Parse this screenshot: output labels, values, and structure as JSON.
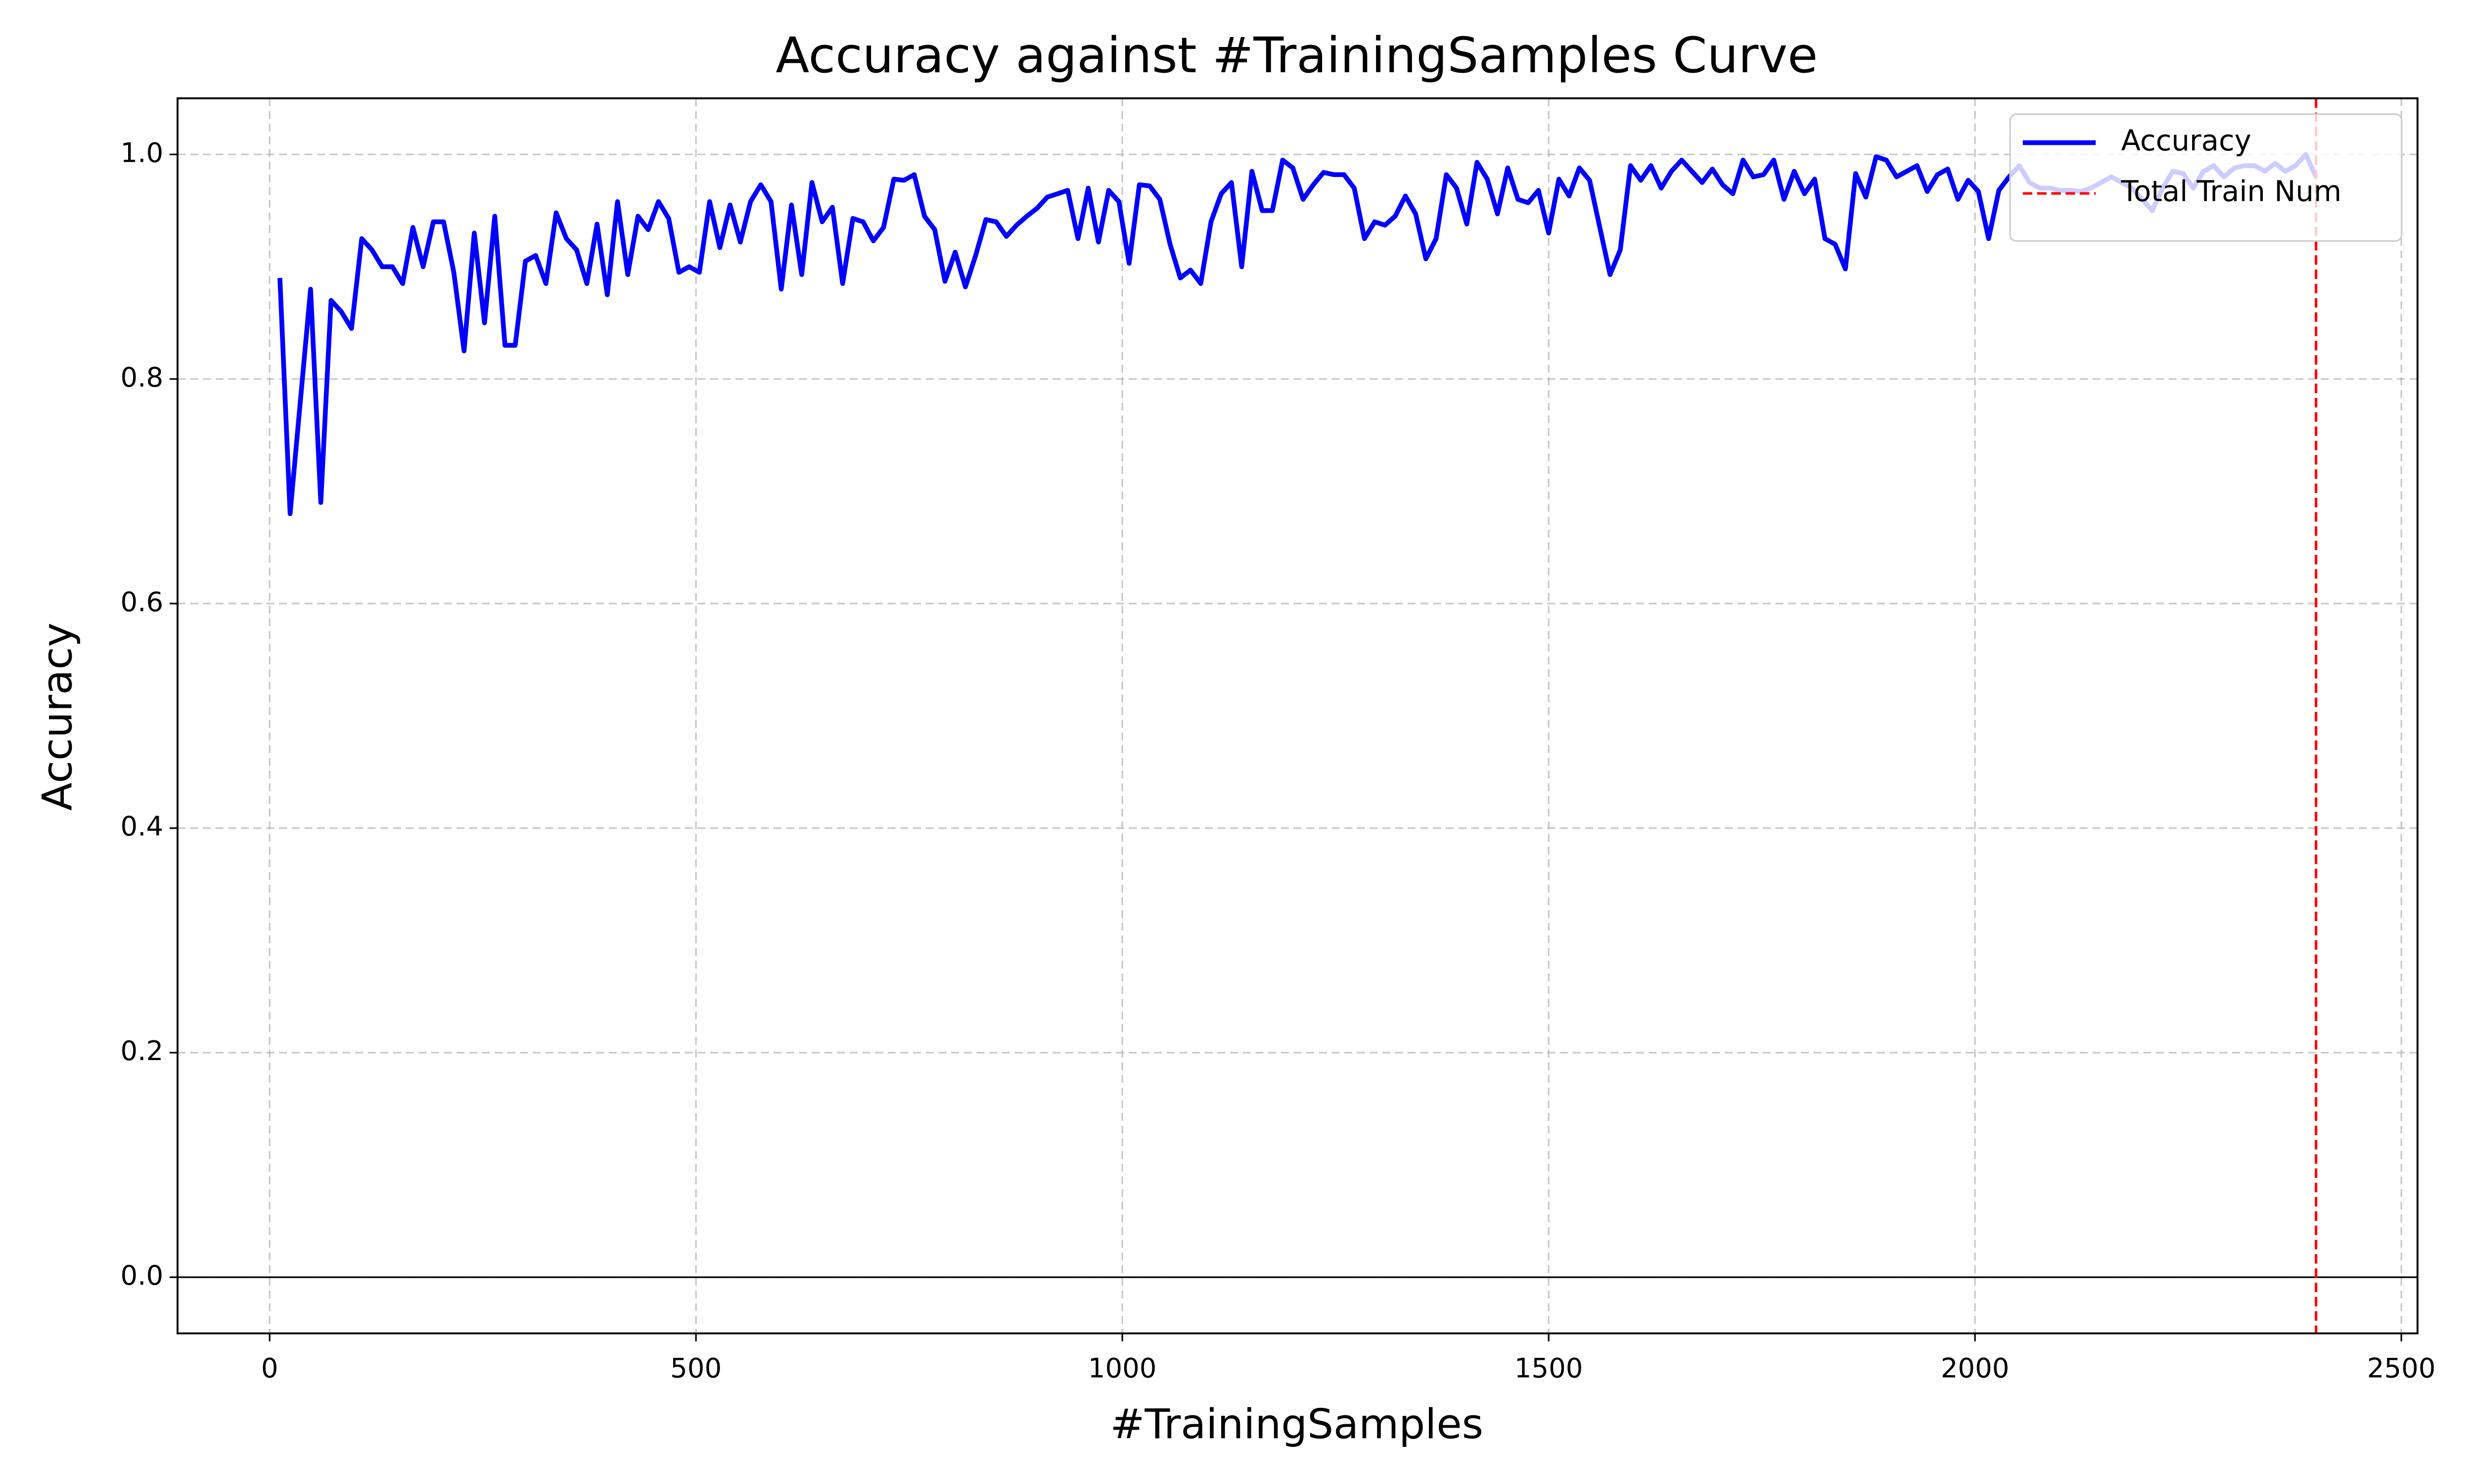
{
  "chart_data": {
    "type": "line",
    "title": "Accuracy against #TrainingSamples Curve",
    "xlabel": "#TrainingSamples",
    "ylabel": "Accuracy",
    "xlim": [
      -108,
      2519
    ],
    "ylim": [
      -0.05,
      1.05
    ],
    "xticks": [
      0,
      500,
      1000,
      1500,
      2000,
      2500
    ],
    "yticks": [
      {
        "value": 0,
        "label": "0.0"
      },
      0.2,
      0.4,
      0.6,
      0.8,
      {
        "value": 1,
        "label": "1.0"
      }
    ],
    "grid": true,
    "legend": "upper right",
    "x": [
      12,
      24,
      36,
      48,
      60,
      72,
      84,
      96,
      108,
      120,
      132,
      144,
      156,
      168,
      180,
      192,
      204,
      216,
      228,
      240,
      252,
      264,
      276,
      288,
      300,
      312,
      324,
      336,
      348,
      360,
      372,
      384,
      396,
      408,
      420,
      432,
      444,
      456,
      468,
      480,
      492,
      504,
      516,
      528,
      540,
      552,
      564,
      576,
      588,
      600,
      612,
      624,
      636,
      648,
      660,
      672,
      684,
      696,
      708,
      720,
      732,
      744,
      756,
      768,
      780,
      792,
      804,
      816,
      828,
      840,
      852,
      864,
      876,
      888,
      900,
      912,
      924,
      936,
      948,
      960,
      972,
      984,
      996,
      1008,
      1020,
      1032,
      1044,
      1056,
      1068,
      1080,
      1092,
      1104,
      1116,
      1128,
      1140,
      1152,
      1164,
      1176,
      1188,
      1200,
      1212,
      1224,
      1236,
      1248,
      1260,
      1272,
      1284,
      1296,
      1308,
      1320,
      1332,
      1344,
      1356,
      1368,
      1380,
      1392,
      1404,
      1416,
      1428,
      1440,
      1452,
      1464,
      1476,
      1488,
      1500,
      1512,
      1524,
      1536,
      1548,
      1560,
      1572,
      1584,
      1596,
      1608,
      1620,
      1632,
      1644,
      1656,
      1668,
      1680,
      1692,
      1704,
      1716,
      1728,
      1740,
      1752,
      1764,
      1776,
      1788,
      1800,
      1812,
      1824,
      1836,
      1848,
      1860,
      1872,
      1884,
      1896,
      1908,
      1920,
      1932,
      1944,
      1956,
      1968,
      1980,
      1992,
      2004,
      2016,
      2028,
      2040,
      2052,
      2064,
      2076,
      2088,
      2100,
      2112,
      2124,
      2136,
      2148,
      2160,
      2172,
      2184,
      2196,
      2208,
      2220,
      2232,
      2244,
      2256,
      2268,
      2280,
      2292,
      2304,
      2316,
      2328,
      2340,
      2352,
      2364,
      2376,
      2388,
      2400
    ],
    "series": [
      {
        "name": "Accuracy",
        "color": "#0000ff",
        "values": [
          0.89,
          0.68,
          0.78,
          0.88,
          0.69,
          0.87,
          0.86,
          0.845,
          0.925,
          0.915,
          0.9,
          0.9,
          0.885,
          0.935,
          0.9,
          0.94,
          0.94,
          0.895,
          0.825,
          0.93,
          0.85,
          0.945,
          0.83,
          0.83,
          0.905,
          0.91,
          0.885,
          0.948,
          0.925,
          0.915,
          0.885,
          0.938,
          0.875,
          0.958,
          0.893,
          0.945,
          0.933,
          0.958,
          0.943,
          0.895,
          0.9,
          0.895,
          0.958,
          0.917,
          0.955,
          0.922,
          0.958,
          0.973,
          0.958,
          0.88,
          0.955,
          0.893,
          0.975,
          0.94,
          0.953,
          0.885,
          0.943,
          0.94,
          0.923,
          0.935,
          0.978,
          0.977,
          0.982,
          0.945,
          0.933,
          0.887,
          0.913,
          0.882,
          0.91,
          0.942,
          0.94,
          0.927,
          0.937,
          0.945,
          0.952,
          0.962,
          0.965,
          0.968,
          0.925,
          0.97,
          0.922,
          0.968,
          0.958,
          0.903,
          0.973,
          0.972,
          0.96,
          0.92,
          0.89,
          0.897,
          0.885,
          0.94,
          0.965,
          0.975,
          0.9,
          0.985,
          0.95,
          0.95,
          0.995,
          0.988,
          0.96,
          0.973,
          0.984,
          0.982,
          0.982,
          0.97,
          0.925,
          0.94,
          0.937,
          0.945,
          0.963,
          0.947,
          0.907,
          0.925,
          0.982,
          0.97,
          0.938,
          0.993,
          0.978,
          0.947,
          0.988,
          0.96,
          0.957,
          0.968,
          0.93,
          0.978,
          0.963,
          0.988,
          0.977,
          0.935,
          0.893,
          0.915,
          0.99,
          0.977,
          0.99,
          0.97,
          0.985,
          0.995,
          0.985,
          0.975,
          0.987,
          0.973,
          0.965,
          0.995,
          0.98,
          0.982,
          0.995,
          0.96,
          0.985,
          0.965,
          0.978,
          0.925,
          0.92,
          0.898,
          0.983,
          0.962,
          0.998,
          0.995,
          0.98,
          0.985,
          0.99,
          0.967,
          0.982,
          0.987,
          0.96,
          0.977,
          0.967,
          0.925,
          0.968,
          0.98,
          0.99,
          0.975,
          0.97,
          0.97,
          0.968,
          0.968,
          0.967,
          0.97,
          0.975,
          0.98,
          0.975,
          0.97,
          0.96,
          0.95,
          0.97,
          0.985,
          0.983,
          0.97,
          0.985,
          0.99,
          0.98,
          0.988,
          0.99,
          0.99,
          0.985,
          0.992,
          0.985,
          0.99,
          1.0,
          0.98
        ]
      }
    ],
    "vline": {
      "x": 2400,
      "name": "Total Train Num",
      "color": "#ff0000"
    },
    "hline": {
      "y": 0,
      "color": "#000000"
    }
  }
}
